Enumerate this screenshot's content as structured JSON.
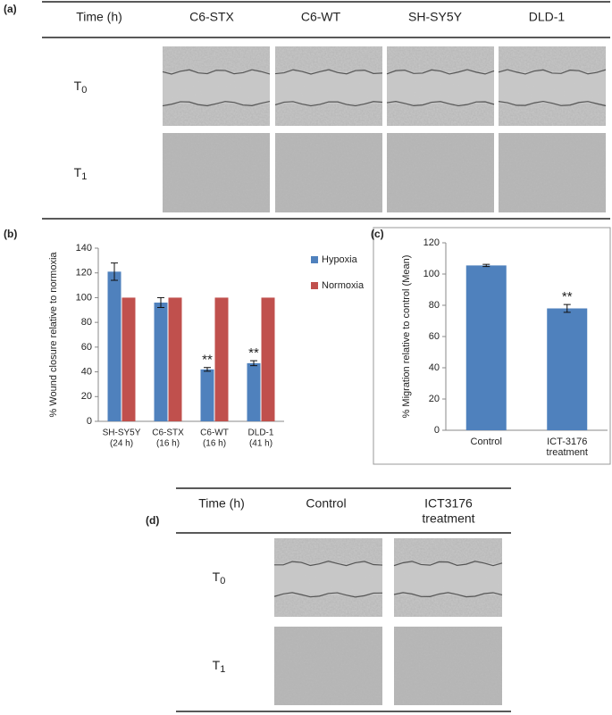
{
  "figure": {
    "panel_a": {
      "label": "(a)",
      "header": [
        [
          "Time (h)"
        ],
        [
          "C6-STX"
        ],
        [
          "C6-WT"
        ],
        [
          "SH-SY5Y"
        ],
        [
          "DLD-1"
        ]
      ],
      "rows": [
        {
          "label": "T",
          "subscript": "0"
        },
        {
          "label": "T",
          "subscript": "1"
        }
      ]
    },
    "panel_b_label": "(b)",
    "panel_c_label": "(c)",
    "panel_d": {
      "label": "(d)",
      "header": [
        [
          "Time (h)"
        ],
        [
          "Control"
        ],
        [
          "ICT3176",
          "treatment"
        ]
      ],
      "rows": [
        {
          "label": "T",
          "subscript": "0"
        },
        {
          "label": "T",
          "subscript": "1"
        }
      ]
    }
  },
  "chart_data": [
    {
      "type": "bar",
      "ylabel": "% Wound closure relative to normoxia",
      "categories": [
        "SH-SY5Y",
        "C6-STX",
        "C6-WT",
        "DLD-1"
      ],
      "category_sublabels": [
        "(24 h)",
        "(16 h)",
        "(16 h)",
        "(41 h)"
      ],
      "series": [
        {
          "name": "Hypoxia",
          "color": "#4f81bd",
          "values": [
            121,
            96,
            42,
            47
          ],
          "errors": [
            7,
            4,
            1.5,
            2
          ],
          "markers": [
            null,
            null,
            "**",
            "**"
          ]
        },
        {
          "name": "Normoxia",
          "color": "#c0504d",
          "values": [
            100,
            100,
            100,
            100
          ]
        }
      ],
      "ylim": [
        0,
        140
      ],
      "yticks": [
        0,
        20,
        40,
        60,
        80,
        100,
        120,
        140
      ],
      "legend": "right"
    },
    {
      "type": "bar",
      "ylabel": "% Migration relative to control (Mean)",
      "categories": [
        "Control",
        "ICT-3176"
      ],
      "category_sublabels": [
        null,
        "treatment"
      ],
      "series": [
        {
          "color": "#4f81bd",
          "values": [
            105.5,
            78
          ],
          "errors": [
            0.7,
            2.5
          ],
          "markers": [
            null,
            "**"
          ]
        }
      ],
      "ylim": [
        0,
        120
      ],
      "yticks": [
        0,
        20,
        40,
        60,
        80,
        100,
        120
      ]
    }
  ]
}
